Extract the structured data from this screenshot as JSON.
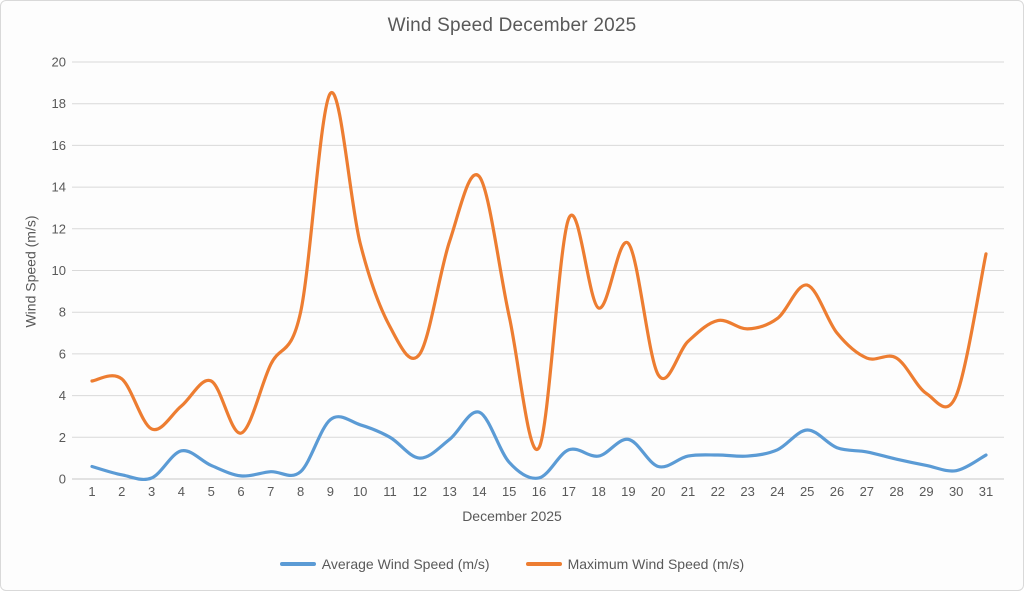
{
  "chart_data": {
    "type": "line",
    "title": "Wind Speed December 2025",
    "xlabel": "December 2025",
    "ylabel": "Wind Speed (m/s)",
    "ylim": [
      0,
      20
    ],
    "y_tick_step": 2,
    "grid": "horizontal",
    "legend_position": "bottom",
    "smooth": true,
    "categories": [
      1,
      2,
      3,
      4,
      5,
      6,
      7,
      8,
      9,
      10,
      11,
      12,
      13,
      14,
      15,
      16,
      17,
      18,
      19,
      20,
      21,
      22,
      23,
      24,
      25,
      26,
      27,
      28,
      29,
      30,
      31
    ],
    "series": [
      {
        "name": "Average Wind Speed (m/s)",
        "color": "#5B9BD5",
        "values": [
          0.6,
          0.2,
          0.05,
          1.35,
          0.65,
          0.15,
          0.35,
          0.35,
          2.85,
          2.6,
          2.0,
          1.0,
          1.9,
          3.2,
          0.8,
          0.05,
          1.4,
          1.1,
          1.9,
          0.6,
          1.1,
          1.15,
          1.1,
          1.4,
          2.35,
          1.5,
          1.3,
          0.95,
          0.65,
          0.4,
          1.15
        ]
      },
      {
        "name": "Maximum Wind Speed (m/s)",
        "color": "#ED7D31",
        "values": [
          4.7,
          4.8,
          2.4,
          3.5,
          4.7,
          2.2,
          5.5,
          8.0,
          18.5,
          11.3,
          7.3,
          6.0,
          11.4,
          14.5,
          7.8,
          1.5,
          12.5,
          8.2,
          11.3,
          5.0,
          6.6,
          7.6,
          7.2,
          7.7,
          9.3,
          7.0,
          5.8,
          5.8,
          4.1,
          4.0,
          10.8
        ]
      }
    ],
    "gridline_color": "#D9D9D9",
    "axis_line_color": "#C6C6C6",
    "text_color": "#595959"
  }
}
